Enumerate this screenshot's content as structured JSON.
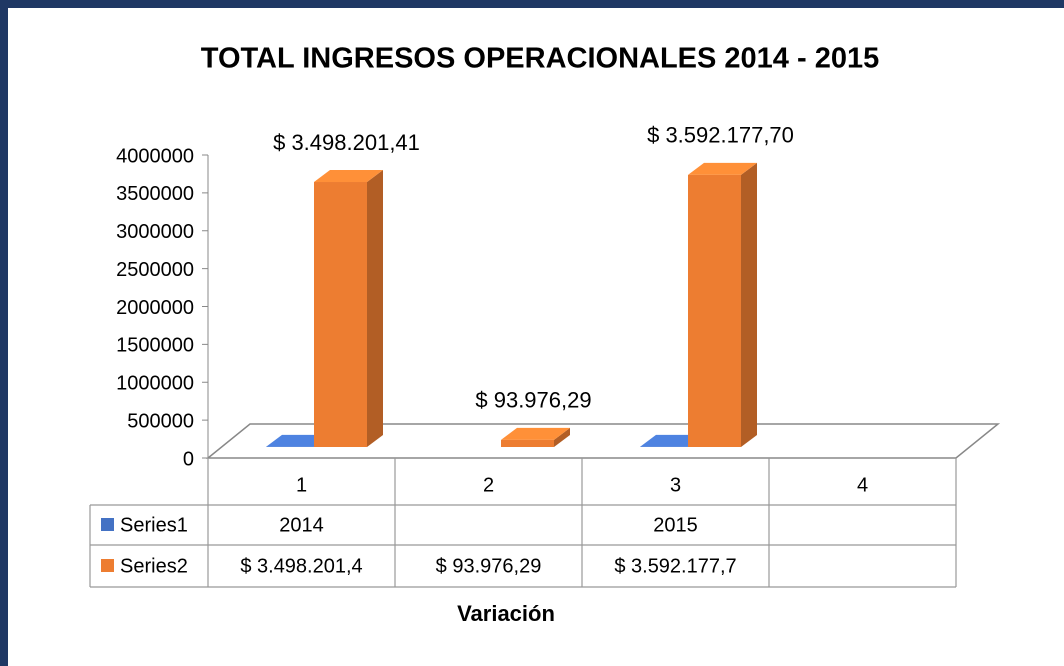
{
  "chart_data": {
    "type": "bar3d",
    "title": "TOTAL INGRESOS OPERACIONALES 2014 - 2015",
    "x_label": "Variación",
    "categories": [
      "1",
      "2",
      "3",
      "4"
    ],
    "series": [
      {
        "name": "Series1",
        "color": "#4472c4",
        "values": [
          2014,
          null,
          2015,
          null
        ]
      },
      {
        "name": "Series2",
        "color": "#ed7d31",
        "values": [
          3498201.41,
          93976.29,
          3592177.7,
          null
        ],
        "value_labels": [
          "$ 3.498.201,41",
          "$ 93.976,29",
          "$ 3.592.177,70",
          null
        ],
        "table_labels": [
          "$ 3.498.201,4",
          "$ 93.976,29",
          "$ 3.592.177,7",
          null
        ]
      }
    ],
    "ylim": [
      0,
      4000000
    ],
    "yticks": [
      0,
      500000,
      1000000,
      1500000,
      2000000,
      2500000,
      3000000,
      3500000,
      4000000
    ],
    "data_table": true
  }
}
